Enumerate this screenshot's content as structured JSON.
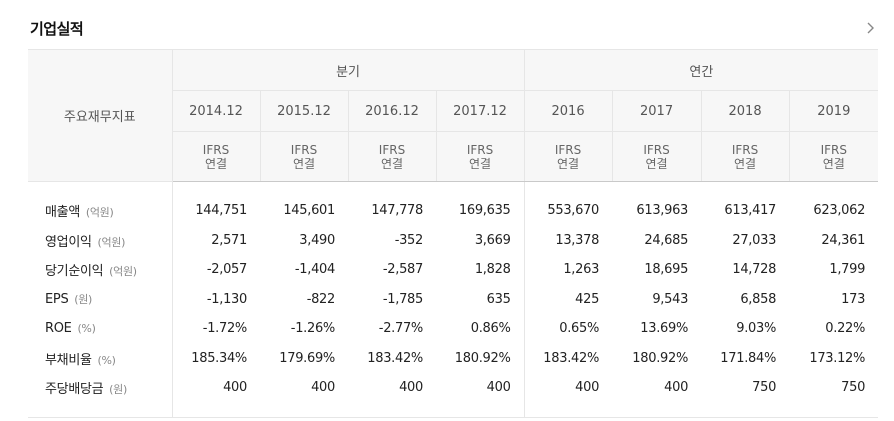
{
  "section": {
    "title": "기업실적",
    "more_icon": "chevron-right-icon"
  },
  "table": {
    "row_header_label": "주요재무지표",
    "groups": [
      {
        "label": "분기"
      },
      {
        "label": "연간"
      }
    ],
    "periods": [
      "2014.12",
      "2015.12",
      "2016.12",
      "2017.12",
      "2016",
      "2017",
      "2018",
      "2019"
    ],
    "standard": "IFRS",
    "standard_sub": "연결",
    "rows": [
      {
        "label": "매출액",
        "unit": "(억원)",
        "values": [
          "144,751",
          "145,601",
          "147,778",
          "169,635",
          "553,670",
          "613,963",
          "613,417",
          "623,062"
        ]
      },
      {
        "label": "영업이익",
        "unit": "(억원)",
        "values": [
          "2,571",
          "3,490",
          "-352",
          "3,669",
          "13,378",
          "24,685",
          "27,033",
          "24,361"
        ]
      },
      {
        "label": "당기순이익",
        "unit": "(억원)",
        "values": [
          "-2,057",
          "-1,404",
          "-2,587",
          "1,828",
          "1,263",
          "18,695",
          "14,728",
          "1,799"
        ]
      },
      {
        "label": "EPS",
        "unit": "(원)",
        "values": [
          "-1,130",
          "-822",
          "-1,785",
          "635",
          "425",
          "9,543",
          "6,858",
          "173"
        ]
      },
      {
        "label": "ROE",
        "unit": "(%)",
        "values": [
          "-1.72%",
          "-1.26%",
          "-2.77%",
          "0.86%",
          "0.65%",
          "13.69%",
          "9.03%",
          "0.22%"
        ]
      },
      {
        "label": "부채비율",
        "unit": "(%)",
        "values": [
          "185.34%",
          "179.69%",
          "183.42%",
          "180.92%",
          "183.42%",
          "180.92%",
          "171.84%",
          "173.12%"
        ]
      },
      {
        "label": "주당배당금",
        "unit": "(원)",
        "values": [
          "400",
          "400",
          "400",
          "400",
          "400",
          "400",
          "750",
          "750"
        ]
      }
    ]
  }
}
